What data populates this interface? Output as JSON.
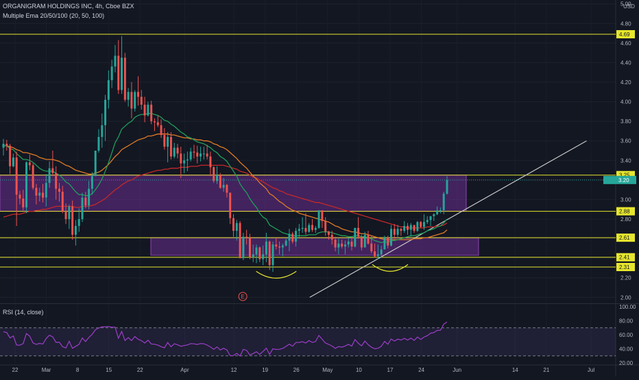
{
  "header": {
    "symbol_line": "ORGANIGRAM HOLDINGS INC, 4h, Cboe BZX",
    "indicator_line": "Multiple Ema 20/50/100 (20, 50, 100)",
    "rsi_line": "RSI (14, close)",
    "currency": "USD"
  },
  "colors": {
    "background": "#131722",
    "up": "#26a69a",
    "down": "#ef5350",
    "ema20": "#1f9e5a",
    "ema50": "#e07b24",
    "ema100": "#c62828",
    "level_line": "#e6e62e",
    "zone_fill": "#6a2d8f",
    "rsi_line": "#9c3fc8",
    "trendline": "#c8c8c8"
  },
  "chart_data": {
    "type": "candlestick",
    "y_axis": {
      "ticks": [
        "5.00",
        "4.80",
        "4.60",
        "4.40",
        "4.20",
        "4.00",
        "3.80",
        "3.60",
        "3.40",
        "3.20",
        "3.00",
        "2.80",
        "2.60",
        "2.40",
        "2.20",
        "2.00"
      ],
      "range": [
        1.96,
        5.04
      ]
    },
    "x_axis": {
      "ticks": [
        "22",
        "Mar",
        "8",
        "15",
        "22",
        "Apr",
        "12",
        "19",
        "26",
        "May",
        "10",
        "17",
        "24",
        "Jun",
        "14",
        "21",
        "Jul"
      ],
      "range": [
        "2021-02-22",
        "2021-07-01"
      ]
    },
    "price_levels": [
      {
        "label": "4.69",
        "value": 4.69
      },
      {
        "label": "3.25",
        "value": 3.25
      },
      {
        "label": "2.88",
        "value": 2.88
      },
      {
        "label": "2.61",
        "value": 2.61
      },
      {
        "label": "2.41",
        "value": 2.41
      },
      {
        "label": "2.31",
        "value": 2.31
      }
    ],
    "current_price_label": "3.20",
    "zones": [
      {
        "x_start": "2021-02-22",
        "x_end": "2021-05-31",
        "y_low": 2.88,
        "y_high": 3.25
      },
      {
        "x_start": "2021-03-29",
        "x_end": "2021-06-05",
        "y_low": 2.43,
        "y_high": 2.61
      }
    ],
    "trendline": {
      "x1": "2021-04-29",
      "y1": 2.0,
      "x2": "2021-06-30",
      "y2": 3.6
    },
    "earnings_marker": {
      "label": "E",
      "x": "2021-04-14"
    },
    "pattern_arcs": [
      {
        "x_start": "2021-04-17",
        "x_end": "2021-04-26",
        "y": 2.21
      },
      {
        "x_start": "2021-05-13",
        "x_end": "2021-05-21",
        "y": 2.28
      }
    ],
    "candles": [
      [
        3.53,
        3.62,
        3.45,
        3.57
      ],
      [
        3.57,
        3.61,
        3.5,
        3.55
      ],
      [
        3.55,
        3.57,
        3.26,
        3.34
      ],
      [
        3.34,
        3.47,
        3.33,
        3.43
      ],
      [
        3.43,
        3.49,
        2.73,
        3.05
      ],
      [
        3.05,
        3.09,
        2.95,
        3.01
      ],
      [
        3.01,
        3.1,
        2.89,
        2.92
      ],
      [
        2.92,
        3.39,
        2.86,
        3.38
      ],
      [
        3.38,
        3.46,
        3.3,
        3.35
      ],
      [
        3.35,
        3.37,
        3.1,
        3.12
      ],
      [
        3.12,
        3.16,
        2.95,
        3.04
      ],
      [
        3.04,
        3.12,
        2.98,
        3.07
      ],
      [
        3.07,
        3.16,
        2.97,
        3.02
      ],
      [
        3.02,
        3.26,
        2.93,
        3.17
      ],
      [
        3.17,
        3.39,
        3.12,
        3.32
      ],
      [
        3.32,
        3.5,
        3.24,
        3.27
      ],
      [
        3.27,
        3.34,
        3.0,
        3.11
      ],
      [
        3.11,
        3.17,
        2.98,
        3.08
      ],
      [
        3.08,
        3.14,
        2.86,
        2.88
      ],
      [
        2.88,
        2.96,
        2.75,
        2.8
      ],
      [
        2.8,
        2.95,
        2.7,
        2.93
      ],
      [
        2.93,
        2.99,
        2.59,
        2.64
      ],
      [
        2.64,
        2.79,
        2.53,
        2.73
      ],
      [
        2.73,
        2.91,
        2.67,
        2.8
      ],
      [
        2.8,
        3.07,
        2.77,
        3.02
      ],
      [
        3.02,
        3.08,
        2.91,
        2.94
      ],
      [
        2.94,
        3.19,
        2.9,
        3.11
      ],
      [
        3.11,
        3.28,
        3.05,
        3.24
      ],
      [
        3.24,
        3.5,
        3.24,
        3.5
      ],
      [
        3.5,
        3.72,
        3.48,
        3.64
      ],
      [
        3.64,
        3.88,
        3.53,
        3.76
      ],
      [
        3.76,
        4.07,
        3.6,
        4.02
      ],
      [
        4.02,
        4.32,
        3.93,
        4.22
      ],
      [
        4.22,
        4.43,
        4.14,
        4.36
      ],
      [
        4.36,
        4.58,
        4.3,
        4.47
      ],
      [
        4.47,
        4.63,
        4.08,
        4.12
      ],
      [
        4.12,
        4.67,
        4.08,
        4.45
      ],
      [
        4.45,
        4.5,
        4.0,
        4.02
      ],
      [
        4.02,
        4.14,
        3.95,
        4.1
      ],
      [
        4.1,
        4.2,
        3.83,
        3.93
      ],
      [
        3.93,
        4.12,
        3.9,
        4.1
      ],
      [
        4.1,
        4.26,
        3.96,
        4.05
      ],
      [
        4.05,
        4.12,
        3.92,
        3.97
      ],
      [
        3.97,
        4.05,
        3.79,
        3.86
      ],
      [
        3.86,
        4.0,
        3.85,
        3.97
      ],
      [
        3.97,
        4.01,
        3.77,
        3.8
      ],
      [
        3.8,
        3.83,
        3.7,
        3.79
      ],
      [
        3.79,
        3.86,
        3.74,
        3.76
      ],
      [
        3.76,
        3.82,
        3.63,
        3.66
      ],
      [
        3.66,
        3.73,
        3.51,
        3.54
      ],
      [
        3.54,
        3.69,
        3.38,
        3.64
      ],
      [
        3.64,
        3.69,
        3.41,
        3.44
      ],
      [
        3.44,
        3.58,
        3.42,
        3.53
      ],
      [
        3.53,
        3.57,
        3.42,
        3.47
      ],
      [
        3.47,
        3.54,
        3.22,
        3.37
      ],
      [
        3.37,
        3.47,
        3.27,
        3.4
      ],
      [
        3.4,
        3.49,
        3.29,
        3.41
      ],
      [
        3.41,
        3.53,
        3.39,
        3.49
      ],
      [
        3.49,
        3.56,
        3.42,
        3.48
      ],
      [
        3.48,
        3.55,
        3.37,
        3.44
      ],
      [
        3.44,
        3.54,
        3.39,
        3.47
      ],
      [
        3.47,
        3.54,
        3.41,
        3.47
      ],
      [
        3.47,
        3.56,
        3.41,
        3.44
      ],
      [
        3.44,
        3.49,
        3.24,
        3.33
      ],
      [
        3.33,
        3.34,
        3.17,
        3.19
      ],
      [
        3.19,
        3.34,
        3.16,
        3.25
      ],
      [
        3.25,
        3.27,
        3.11,
        3.12
      ],
      [
        3.12,
        3.22,
        3.08,
        3.15
      ],
      [
        3.15,
        3.16,
        3.02,
        3.07
      ],
      [
        3.07,
        3.07,
        2.75,
        2.81
      ],
      [
        2.81,
        2.85,
        2.62,
        2.68
      ],
      [
        2.68,
        2.79,
        2.58,
        2.76
      ],
      [
        2.76,
        2.78,
        2.4,
        2.4
      ],
      [
        2.4,
        2.66,
        2.38,
        2.62
      ],
      [
        2.62,
        2.69,
        2.54,
        2.61
      ],
      [
        2.61,
        2.65,
        2.39,
        2.41
      ],
      [
        2.41,
        2.54,
        2.36,
        2.44
      ],
      [
        2.44,
        2.54,
        2.35,
        2.51
      ],
      [
        2.51,
        2.52,
        2.36,
        2.39
      ],
      [
        2.39,
        2.53,
        2.33,
        2.44
      ],
      [
        2.44,
        2.66,
        2.36,
        2.57
      ],
      [
        2.57,
        2.58,
        2.28,
        2.33
      ],
      [
        2.33,
        2.57,
        2.26,
        2.54
      ],
      [
        2.54,
        2.61,
        2.49,
        2.52
      ],
      [
        2.52,
        2.57,
        2.44,
        2.51
      ],
      [
        2.51,
        2.55,
        2.42,
        2.53
      ],
      [
        2.53,
        2.6,
        2.52,
        2.58
      ],
      [
        2.58,
        2.7,
        2.47,
        2.65
      ],
      [
        2.65,
        2.67,
        2.55,
        2.57
      ],
      [
        2.57,
        2.71,
        2.52,
        2.68
      ],
      [
        2.68,
        2.75,
        2.62,
        2.7
      ],
      [
        2.7,
        2.82,
        2.66,
        2.71
      ],
      [
        2.71,
        2.86,
        2.64,
        2.67
      ],
      [
        2.67,
        2.76,
        2.66,
        2.74
      ],
      [
        2.74,
        2.8,
        2.67,
        2.69
      ],
      [
        2.69,
        2.73,
        2.66,
        2.71
      ],
      [
        2.71,
        2.89,
        2.7,
        2.89
      ],
      [
        2.89,
        2.89,
        2.71,
        2.78
      ],
      [
        2.78,
        2.82,
        2.63,
        2.67
      ],
      [
        2.67,
        2.68,
        2.59,
        2.64
      ],
      [
        2.64,
        2.68,
        2.54,
        2.59
      ],
      [
        2.59,
        2.62,
        2.47,
        2.51
      ],
      [
        2.51,
        2.6,
        2.44,
        2.55
      ],
      [
        2.55,
        2.59,
        2.5,
        2.52
      ],
      [
        2.52,
        2.58,
        2.44,
        2.54
      ],
      [
        2.54,
        2.61,
        2.51,
        2.57
      ],
      [
        2.57,
        2.62,
        2.48,
        2.52
      ],
      [
        2.52,
        2.71,
        2.51,
        2.71
      ],
      [
        2.71,
        2.82,
        2.6,
        2.62
      ],
      [
        2.62,
        2.64,
        2.48,
        2.51
      ],
      [
        2.51,
        2.67,
        2.51,
        2.64
      ],
      [
        2.64,
        2.68,
        2.54,
        2.55
      ],
      [
        2.55,
        2.63,
        2.45,
        2.47
      ],
      [
        2.47,
        2.55,
        2.41,
        2.42
      ],
      [
        2.42,
        2.54,
        2.39,
        2.44
      ],
      [
        2.44,
        2.53,
        2.41,
        2.49
      ],
      [
        2.49,
        2.63,
        2.49,
        2.61
      ],
      [
        2.61,
        2.63,
        2.5,
        2.53
      ],
      [
        2.53,
        2.74,
        2.52,
        2.7
      ],
      [
        2.7,
        2.75,
        2.6,
        2.64
      ],
      [
        2.64,
        2.74,
        2.62,
        2.7
      ],
      [
        2.7,
        2.71,
        2.63,
        2.68
      ],
      [
        2.68,
        2.78,
        2.66,
        2.73
      ],
      [
        2.73,
        2.76,
        2.64,
        2.69
      ],
      [
        2.69,
        2.76,
        2.62,
        2.74
      ],
      [
        2.74,
        2.74,
        2.66,
        2.68
      ],
      [
        2.68,
        2.78,
        2.67,
        2.77
      ],
      [
        2.77,
        2.78,
        2.71,
        2.72
      ],
      [
        2.72,
        2.85,
        2.69,
        2.77
      ],
      [
        2.77,
        2.83,
        2.75,
        2.79
      ],
      [
        2.79,
        2.83,
        2.73,
        2.83
      ],
      [
        2.83,
        2.86,
        2.78,
        2.85
      ],
      [
        2.85,
        2.93,
        2.84,
        2.89
      ],
      [
        2.89,
        2.92,
        2.86,
        2.89
      ],
      [
        2.89,
        3.08,
        2.85,
        3.06
      ],
      [
        3.06,
        3.24,
        3.05,
        3.2
      ]
    ],
    "ema20": [
      3.55,
      3.55,
      3.52,
      3.51,
      3.47,
      3.44,
      3.41,
      3.41,
      3.4,
      3.38,
      3.35,
      3.32,
      3.3,
      3.29,
      3.29,
      3.29,
      3.27,
      3.25,
      3.22,
      3.18,
      3.16,
      3.12,
      3.08,
      3.05,
      3.05,
      3.04,
      3.04,
      3.06,
      3.1,
      3.15,
      3.21,
      3.29,
      3.38,
      3.48,
      3.58,
      3.64,
      3.72,
      3.75,
      3.78,
      3.8,
      3.84,
      3.86,
      3.87,
      3.87,
      3.88,
      3.88,
      3.87,
      3.86,
      3.84,
      3.81,
      3.8,
      3.77,
      3.75,
      3.72,
      3.69,
      3.67,
      3.64,
      3.63,
      3.61,
      3.59,
      3.58,
      3.57,
      3.55,
      3.53,
      3.5,
      3.48,
      3.44,
      3.42,
      3.39,
      3.34,
      3.29,
      3.24,
      3.16,
      3.11,
      3.07,
      3.01,
      2.96,
      2.92,
      2.86,
      2.82,
      2.8,
      2.74,
      2.72,
      2.7,
      2.68,
      2.66,
      2.65,
      2.64,
      2.63,
      2.63,
      2.63,
      2.63,
      2.63,
      2.64,
      2.64,
      2.64,
      2.66,
      2.67,
      2.67,
      2.67,
      2.66,
      2.65,
      2.64,
      2.63,
      2.63,
      2.62,
      2.62,
      2.63,
      2.63,
      2.62,
      2.62,
      2.61,
      2.6,
      2.58,
      2.57,
      2.56,
      2.57,
      2.56,
      2.58,
      2.58,
      2.59,
      2.6,
      2.61,
      2.62,
      2.63,
      2.63,
      2.64,
      2.65,
      2.66,
      2.68,
      2.69,
      2.7,
      2.72,
      2.73,
      2.76,
      2.8
    ],
    "ema50": [
      3.55,
      3.55,
      3.54,
      3.53,
      3.51,
      3.5,
      3.48,
      3.48,
      3.47,
      3.46,
      3.45,
      3.43,
      3.42,
      3.41,
      3.41,
      3.41,
      3.4,
      3.39,
      3.37,
      3.35,
      3.34,
      3.32,
      3.3,
      3.29,
      3.28,
      3.27,
      3.26,
      3.26,
      3.27,
      3.28,
      3.3,
      3.33,
      3.36,
      3.4,
      3.44,
      3.47,
      3.51,
      3.53,
      3.55,
      3.57,
      3.59,
      3.61,
      3.62,
      3.63,
      3.65,
      3.65,
      3.66,
      3.67,
      3.67,
      3.67,
      3.67,
      3.66,
      3.66,
      3.65,
      3.64,
      3.63,
      3.63,
      3.62,
      3.62,
      3.61,
      3.61,
      3.6,
      3.6,
      3.59,
      3.57,
      3.56,
      3.54,
      3.53,
      3.51,
      3.48,
      3.45,
      3.42,
      3.38,
      3.35,
      3.32,
      3.28,
      3.24,
      3.21,
      3.17,
      3.14,
      3.11,
      3.06,
      3.04,
      3.01,
      2.98,
      2.96,
      2.93,
      2.91,
      2.89,
      2.88,
      2.86,
      2.85,
      2.84,
      2.83,
      2.82,
      2.81,
      2.8,
      2.79,
      2.78,
      2.77,
      2.75,
      2.73,
      2.72,
      2.7,
      2.69,
      2.68,
      2.67,
      2.67,
      2.66,
      2.65,
      2.65,
      2.64,
      2.63,
      2.62,
      2.61,
      2.6,
      2.59,
      2.59,
      2.59,
      2.59,
      2.59,
      2.59,
      2.59,
      2.59,
      2.59,
      2.6,
      2.6,
      2.6,
      2.61,
      2.61,
      2.62,
      2.63,
      2.64,
      2.65,
      2.66,
      2.69
    ],
    "ema100": [
      2.82,
      2.83,
      2.84,
      2.85,
      2.85,
      2.85,
      2.86,
      2.87,
      2.88,
      2.88,
      2.89,
      2.89,
      2.9,
      2.9,
      2.91,
      2.92,
      2.93,
      2.93,
      2.93,
      2.93,
      2.93,
      2.93,
      2.92,
      2.92,
      2.93,
      2.93,
      2.93,
      2.94,
      2.95,
      2.97,
      2.99,
      3.01,
      3.04,
      3.07,
      3.1,
      3.12,
      3.15,
      3.17,
      3.19,
      3.2,
      3.22,
      3.24,
      3.25,
      3.26,
      3.27,
      3.28,
      3.29,
      3.3,
      3.3,
      3.31,
      3.31,
      3.32,
      3.32,
      3.32,
      3.33,
      3.33,
      3.33,
      3.34,
      3.34,
      3.34,
      3.35,
      3.35,
      3.35,
      3.35,
      3.35,
      3.35,
      3.35,
      3.35,
      3.34,
      3.33,
      3.32,
      3.31,
      3.29,
      3.28,
      3.27,
      3.25,
      3.23,
      3.22,
      3.2,
      3.18,
      3.16,
      3.14,
      3.12,
      3.11,
      3.09,
      3.08,
      3.06,
      3.05,
      3.04,
      3.03,
      3.02,
      3.01,
      3.0,
      2.99,
      2.98,
      2.97,
      2.97,
      2.96,
      2.95,
      2.94,
      2.93,
      2.92,
      2.91,
      2.9,
      2.89,
      2.88,
      2.87,
      2.86,
      2.85,
      2.84,
      2.83,
      2.82,
      2.81,
      2.8,
      2.79,
      2.78,
      2.77,
      2.76,
      2.75,
      2.74,
      2.73,
      2.72,
      2.72,
      2.71,
      2.71,
      2.71,
      2.71,
      2.71,
      2.71,
      2.72,
      2.72,
      2.72,
      2.73,
      2.73,
      2.74,
      2.76
    ],
    "rsi": {
      "ticks": [
        "100.00",
        "80.00",
        "60.00",
        "40.00",
        "20.00"
      ],
      "range": [
        20,
        100
      ],
      "bands": [
        70,
        30
      ],
      "values": [
        64.4,
        63.2,
        55.6,
        58.4,
        45.5,
        45.2,
        47.5,
        61.9,
        58.1,
        48.5,
        46.3,
        47.8,
        46.8,
        54.7,
        59.5,
        57.0,
        49.3,
        49.4,
        43.0,
        41.3,
        50.8,
        40.8,
        43.6,
        46.4,
        55.5,
        50.4,
        56.2,
        60.6,
        67.2,
        69.8,
        71.4,
        71.3,
        71.7,
        70.7,
        70.9,
        55.1,
        64.8,
        51.9,
        56.0,
        51.8,
        57.6,
        53.6,
        51.7,
        48.3,
        52.3,
        46.9,
        46.5,
        45.3,
        43.1,
        41.5,
        49.1,
        42.9,
        47.3,
        45.8,
        43.7,
        44.7,
        45.6,
        47.5,
        47.1,
        46.2,
        47.6,
        47.2,
        45.4,
        42.7,
        39.3,
        42.8,
        38.4,
        40.9,
        38.4,
        30.2,
        30.4,
        33.6,
        29.9,
        39.3,
        37.9,
        31.3,
        33.4,
        35.9,
        32.1,
        36.3,
        41.0,
        32.2,
        40.1,
        39.1,
        39.3,
        40.7,
        43.5,
        46.7,
        43.8,
        49.0,
        49.2,
        50.2,
        48.2,
        51.8,
        49.2,
        50.4,
        59.1,
        53.7,
        48.3,
        46.3,
        44.0,
        40.6,
        43.3,
        42.3,
        44.1,
        46.4,
        43.9,
        53.3,
        48.0,
        44.3,
        51.1,
        45.9,
        42.3,
        40.1,
        40.9,
        43.6,
        50.5,
        46.5,
        54.0,
        51.1,
        53.9,
        52.6,
        54.9,
        52.5,
        55.3,
        52.0,
        56.9,
        53.4,
        57.0,
        58.7,
        62.3,
        63.1,
        66.2,
        66.5,
        75.1,
        78.2
      ]
    }
  }
}
